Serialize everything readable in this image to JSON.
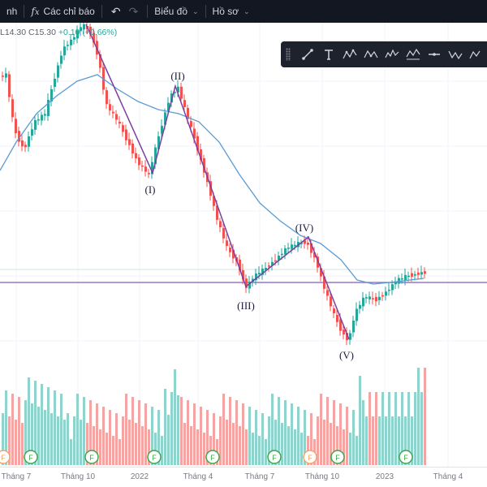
{
  "toolbar": {
    "left_fragment": "nh",
    "indicators_label": "Các chỉ báo",
    "indicators_icon": "function-icon",
    "undo_icon": "undo-icon",
    "redo_icon": "redo-icon",
    "chart_menu_label": "Biểu đồ",
    "profile_menu_label": "Hồ sơ"
  },
  "legend": {
    "low": "L14.30",
    "close": "C15.30",
    "change": "+0.10 (+0.66%)"
  },
  "drawing_toolbar": {
    "tools": [
      "trend-line-icon",
      "text-tool-icon",
      "pattern-tool-1-icon",
      "pattern-tool-2-icon",
      "pattern-tool-3-icon",
      "pattern-tool-4-icon",
      "horizontal-line-icon",
      "pattern-tool-5-icon",
      "pattern-tool-6-icon",
      "more-icon"
    ]
  },
  "colors": {
    "up": "#26a69a",
    "down": "#ef5350",
    "ma_line": "#5b9bd5",
    "wave_line": "#7b3fa0",
    "hline": "#9575cd"
  },
  "chart_data": {
    "type": "candlestick",
    "x_axis_labels": [
      "Tháng 7",
      "Tháng 10",
      "2022",
      "Tháng 4",
      "Tháng 7",
      "Tháng 10",
      "2023",
      "Tháng 4"
    ],
    "wave_labels": [
      "(I)",
      "(II)",
      "(III)",
      "(IV)",
      "(V)"
    ],
    "event_markers": [
      "F",
      "F",
      "F",
      "F",
      "F",
      "F",
      "F",
      "F",
      "F"
    ]
  }
}
